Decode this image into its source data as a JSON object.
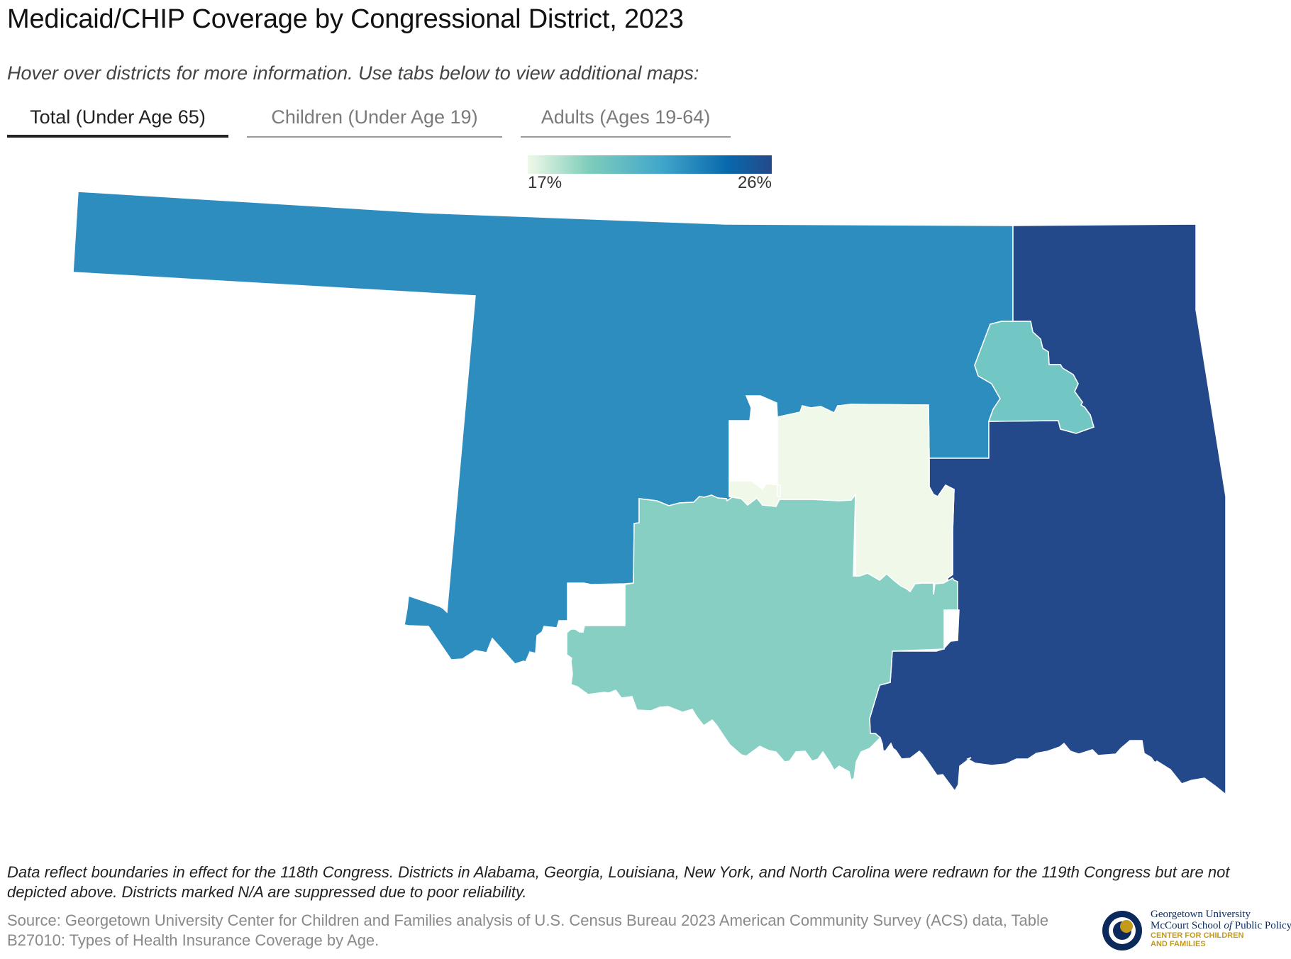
{
  "header": {
    "title": "Medicaid/CHIP Coverage by Congressional District, 2023",
    "subtitle": "Hover over districts for more information. Use tabs below to view additional maps:"
  },
  "tabs": [
    {
      "label": "Total (Under Age 65)",
      "active": true
    },
    {
      "label": "Children (Under Age 19)",
      "active": false
    },
    {
      "label": "Adults (Ages 19-64)",
      "active": false
    }
  ],
  "legend": {
    "min_label": "17%",
    "max_label": "26%",
    "min_value": 17,
    "max_value": 26,
    "colors": [
      "#f0f9e8",
      "#7fcdbb",
      "#41a6cb",
      "#0868ac",
      "#24498a"
    ]
  },
  "map_data": {
    "state": "Oklahoma",
    "districts": [
      {
        "id": "OK-1",
        "color": "#72c6c3"
      },
      {
        "id": "OK-2",
        "color": "#24498a"
      },
      {
        "id": "OK-3",
        "color": "#2e8dbf"
      },
      {
        "id": "OK-4",
        "color": "#87cfc3"
      },
      {
        "id": "OK-5",
        "color": "#eff8e9"
      }
    ]
  },
  "footer": {
    "note": "Data reflect boundaries in effect for the 118th Congress. Districts in Alabama, Georgia, Louisiana, New York, and North Carolina were redrawn for the 119th Congress but are not depicted above. Districts marked N/A are suppressed due to poor reliability.",
    "source": "Source: Georgetown University Center for Children and Families analysis of U.S. Census Bureau 2023 American Community Survey (ACS) data, Table B27010: Types of Health Insurance Coverage by Age."
  },
  "logo": {
    "line1": "Georgetown University",
    "line2a": "McCourt School",
    "line2b": "of",
    "line2c": "Public Policy",
    "line3": "CENTER FOR CHILDREN",
    "line4": "AND FAMILIES"
  }
}
